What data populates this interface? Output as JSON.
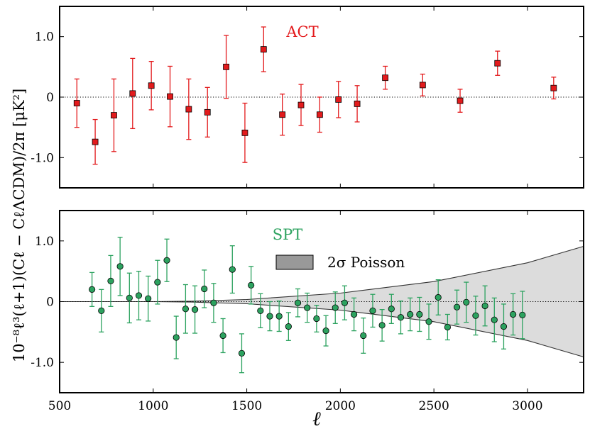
{
  "chart_data": [
    {
      "type": "scatter",
      "panel_label": "ACT",
      "color": "#e31a1c",
      "marker": "square",
      "xlim": [
        500,
        3300
      ],
      "ylim": [
        -1.5,
        1.5
      ],
      "yticks": [
        -1.0,
        0,
        1.0
      ],
      "ytick_labels": [
        "-1.0",
        "0",
        "1.0"
      ],
      "xticks": [
        500,
        1000,
        1500,
        2000,
        2500,
        3000
      ],
      "zero_line": "dotted",
      "points": [
        {
          "x": 592,
          "y": -0.1,
          "err": 0.4
        },
        {
          "x": 690,
          "y": -0.74,
          "err": 0.37
        },
        {
          "x": 790,
          "y": -0.3,
          "err": 0.6
        },
        {
          "x": 890,
          "y": 0.06,
          "err": 0.58
        },
        {
          "x": 990,
          "y": 0.19,
          "err": 0.4
        },
        {
          "x": 1090,
          "y": 0.01,
          "err": 0.5
        },
        {
          "x": 1190,
          "y": -0.2,
          "err": 0.5
        },
        {
          "x": 1290,
          "y": -0.25,
          "err": 0.41
        },
        {
          "x": 1390,
          "y": 0.5,
          "err": 0.52
        },
        {
          "x": 1490,
          "y": -0.59,
          "err": 0.49
        },
        {
          "x": 1590,
          "y": 0.79,
          "err": 0.37
        },
        {
          "x": 1690,
          "y": -0.29,
          "err": 0.34
        },
        {
          "x": 1790,
          "y": -0.13,
          "err": 0.34
        },
        {
          "x": 1890,
          "y": -0.29,
          "err": 0.29
        },
        {
          "x": 1990,
          "y": -0.04,
          "err": 0.3
        },
        {
          "x": 2090,
          "y": -0.11,
          "err": 0.3
        },
        {
          "x": 2240,
          "y": 0.32,
          "err": 0.19
        },
        {
          "x": 2440,
          "y": 0.2,
          "err": 0.18
        },
        {
          "x": 2640,
          "y": -0.06,
          "err": 0.19
        },
        {
          "x": 2840,
          "y": 0.56,
          "err": 0.2
        },
        {
          "x": 3140,
          "y": 0.15,
          "err": 0.18
        }
      ]
    },
    {
      "type": "scatter",
      "panel_label": "SPT",
      "color": "#2ca25f",
      "marker": "circle",
      "xlim": [
        500,
        3300
      ],
      "ylim": [
        -1.5,
        1.5
      ],
      "yticks": [
        -1.0,
        0,
        1.0
      ],
      "ytick_labels": [
        "-1.0",
        "0",
        "1.0"
      ],
      "xticks": [
        500,
        1000,
        1500,
        2000,
        2500,
        3000
      ],
      "xtick_labels": [
        "500",
        "1000",
        "1500",
        "2000",
        "2500",
        "3000"
      ],
      "xlabel": "ℓ",
      "zero_line": "dotted",
      "band": {
        "label": "2σ Poisson",
        "fill": "#dcdcdc",
        "legend_fill": "#999999",
        "half_width": [
          {
            "x": 500,
            "y": 0.0
          },
          {
            "x": 1000,
            "y": 0.0
          },
          {
            "x": 1200,
            "y": 0.007
          },
          {
            "x": 1500,
            "y": 0.035
          },
          {
            "x": 2000,
            "y": 0.14
          },
          {
            "x": 2500,
            "y": 0.33
          },
          {
            "x": 3000,
            "y": 0.64
          },
          {
            "x": 3300,
            "y": 0.91
          }
        ]
      },
      "points": [
        {
          "x": 673,
          "y": 0.2,
          "err": 0.28
        },
        {
          "x": 723,
          "y": -0.15,
          "err": 0.35
        },
        {
          "x": 773,
          "y": 0.34,
          "err": 0.42
        },
        {
          "x": 823,
          "y": 0.58,
          "err": 0.48
        },
        {
          "x": 873,
          "y": 0.06,
          "err": 0.41
        },
        {
          "x": 923,
          "y": 0.1,
          "err": 0.4
        },
        {
          "x": 973,
          "y": 0.05,
          "err": 0.37
        },
        {
          "x": 1023,
          "y": 0.32,
          "err": 0.36
        },
        {
          "x": 1073,
          "y": 0.68,
          "err": 0.35
        },
        {
          "x": 1123,
          "y": -0.59,
          "err": 0.35
        },
        {
          "x": 1173,
          "y": -0.12,
          "err": 0.4
        },
        {
          "x": 1223,
          "y": -0.13,
          "err": 0.39
        },
        {
          "x": 1273,
          "y": 0.21,
          "err": 0.31
        },
        {
          "x": 1323,
          "y": -0.02,
          "err": 0.32
        },
        {
          "x": 1373,
          "y": -0.56,
          "err": 0.28
        },
        {
          "x": 1423,
          "y": 0.53,
          "err": 0.39
        },
        {
          "x": 1473,
          "y": -0.85,
          "err": 0.32
        },
        {
          "x": 1523,
          "y": 0.27,
          "err": 0.31
        },
        {
          "x": 1573,
          "y": -0.15,
          "err": 0.28
        },
        {
          "x": 1623,
          "y": -0.24,
          "err": 0.24
        },
        {
          "x": 1673,
          "y": -0.24,
          "err": 0.25
        },
        {
          "x": 1723,
          "y": -0.41,
          "err": 0.23
        },
        {
          "x": 1773,
          "y": -0.02,
          "err": 0.23
        },
        {
          "x": 1823,
          "y": -0.1,
          "err": 0.24
        },
        {
          "x": 1873,
          "y": -0.28,
          "err": 0.22
        },
        {
          "x": 1923,
          "y": -0.48,
          "err": 0.25
        },
        {
          "x": 1973,
          "y": -0.1,
          "err": 0.26
        },
        {
          "x": 2023,
          "y": -0.02,
          "err": 0.28
        },
        {
          "x": 2073,
          "y": -0.21,
          "err": 0.27
        },
        {
          "x": 2123,
          "y": -0.56,
          "err": 0.29
        },
        {
          "x": 2173,
          "y": -0.15,
          "err": 0.27
        },
        {
          "x": 2223,
          "y": -0.39,
          "err": 0.26
        },
        {
          "x": 2273,
          "y": -0.12,
          "err": 0.24
        },
        {
          "x": 2323,
          "y": -0.26,
          "err": 0.27
        },
        {
          "x": 2373,
          "y": -0.21,
          "err": 0.27
        },
        {
          "x": 2423,
          "y": -0.21,
          "err": 0.28
        },
        {
          "x": 2473,
          "y": -0.33,
          "err": 0.29
        },
        {
          "x": 2523,
          "y": 0.07,
          "err": 0.29
        },
        {
          "x": 2573,
          "y": -0.42,
          "err": 0.21
        },
        {
          "x": 2623,
          "y": -0.09,
          "err": 0.28
        },
        {
          "x": 2673,
          "y": -0.01,
          "err": 0.33
        },
        {
          "x": 2723,
          "y": -0.23,
          "err": 0.32
        },
        {
          "x": 2773,
          "y": -0.07,
          "err": 0.33
        },
        {
          "x": 2823,
          "y": -0.3,
          "err": 0.36
        },
        {
          "x": 2873,
          "y": -0.41,
          "err": 0.37
        },
        {
          "x": 2923,
          "y": -0.21,
          "err": 0.34
        },
        {
          "x": 2973,
          "y": -0.22,
          "err": 0.39
        }
      ]
    }
  ],
  "ylabel": "10⁻⁸ℓ³(ℓ+1)(Cℓ − CℓΛCDM)/2π [μK²]"
}
